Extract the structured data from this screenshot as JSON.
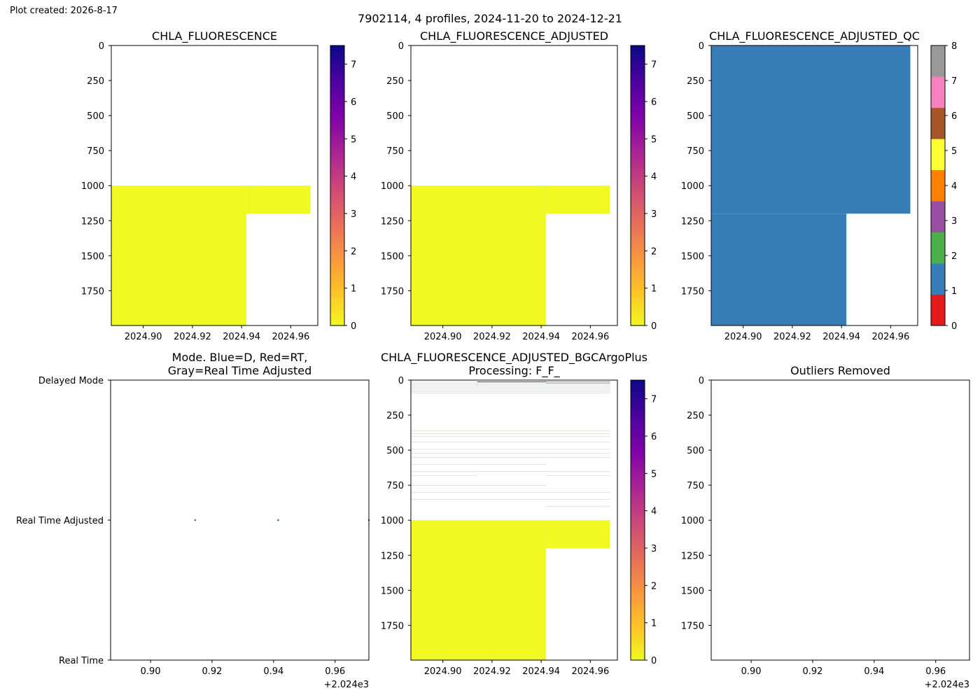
{
  "header": {
    "created": "Plot created: 2026-8-17",
    "suptitle": "7902114, 4 profiles, 2024-11-20 to 2024-12-21"
  },
  "colors": {
    "value_cmap": [
      "#f0f921",
      "#fdc328",
      "#f89441",
      "#e56b5d",
      "#cb4679",
      "#a82296",
      "#7e03a8",
      "#4c02a1",
      "#0d0887"
    ],
    "qc_cmap": [
      "#e41a1c",
      "#377eb8",
      "#4daf4a",
      "#984ea3",
      "#ff7f00",
      "#ffff33",
      "#a65628",
      "#f781bf",
      "#999999"
    ],
    "yellow": "#f0f921",
    "qc1_blue": "#377eb8",
    "profile_dot": "#1f77b4"
  },
  "chart_data": [
    {
      "type": "heatmap",
      "title": "CHLA_FLUORESCENCE",
      "xticks": [
        "2024.90",
        "2024.92",
        "2024.94",
        "2024.96"
      ],
      "xtick_values": [
        2024.9,
        2024.92,
        2024.94,
        2024.96
      ],
      "xlim": [
        2024.887,
        2024.971
      ],
      "yticks": [
        "0",
        "250",
        "500",
        "750",
        "1000",
        "1250",
        "1500",
        "1750"
      ],
      "ytick_values": [
        0,
        250,
        500,
        750,
        1000,
        1250,
        1500,
        1750
      ],
      "ylim": [
        1998,
        0
      ],
      "cells": [
        {
          "x0": 2024.887,
          "x1": 2024.942,
          "y0": 1000,
          "y1": 1998,
          "value": 0
        },
        {
          "x0": 2024.942,
          "x1": 2024.968,
          "y0": 1000,
          "y1": 1200,
          "value": 0
        }
      ],
      "colorbar": {
        "ticks": [
          "0",
          "1",
          "2",
          "3",
          "4",
          "5",
          "6",
          "7"
        ],
        "range": [
          0,
          7.5
        ]
      }
    },
    {
      "type": "heatmap",
      "title": "CHLA_FLUORESCENCE_ADJUSTED",
      "xticks": [
        "2024.90",
        "2024.92",
        "2024.94",
        "2024.96"
      ],
      "xtick_values": [
        2024.9,
        2024.92,
        2024.94,
        2024.96
      ],
      "xlim": [
        2024.887,
        2024.971
      ],
      "yticks": [
        "0",
        "250",
        "500",
        "750",
        "1000",
        "1250",
        "1500",
        "1750"
      ],
      "ytick_values": [
        0,
        250,
        500,
        750,
        1000,
        1250,
        1500,
        1750
      ],
      "ylim": [
        1998,
        0
      ],
      "cells": [
        {
          "x0": 2024.887,
          "x1": 2024.942,
          "y0": 1000,
          "y1": 1998,
          "value": 0
        },
        {
          "x0": 2024.942,
          "x1": 2024.968,
          "y0": 1000,
          "y1": 1200,
          "value": 0
        }
      ],
      "colorbar": {
        "ticks": [
          "0",
          "1",
          "2",
          "3",
          "4",
          "5",
          "6",
          "7"
        ],
        "range": [
          0,
          7.5
        ]
      }
    },
    {
      "type": "heatmap",
      "title": "CHLA_FLUORESCENCE_ADJUSTED_QC",
      "xticks": [
        "2024.90",
        "2024.92",
        "2024.94",
        "2024.96"
      ],
      "xtick_values": [
        2024.9,
        2024.92,
        2024.94,
        2024.96
      ],
      "xlim": [
        2024.887,
        2024.971
      ],
      "yticks": [
        "0",
        "250",
        "500",
        "750",
        "1000",
        "1250",
        "1500",
        "1750"
      ],
      "ytick_values": [
        0,
        250,
        500,
        750,
        1000,
        1250,
        1500,
        1750
      ],
      "ylim": [
        1998,
        0
      ],
      "cells": [
        {
          "x0": 2024.887,
          "x1": 2024.968,
          "y0": 0,
          "y1": 1200,
          "value": 1
        },
        {
          "x0": 2024.887,
          "x1": 2024.942,
          "y0": 1200,
          "y1": 1998,
          "value": 1
        }
      ],
      "colorbar": {
        "ticks": [
          "0",
          "1",
          "2",
          "3",
          "4",
          "5",
          "6",
          "7",
          "8"
        ],
        "range": [
          0,
          8
        ],
        "discrete": true
      }
    },
    {
      "type": "scatter",
      "title": "Mode. Blue=D, Red=RT,",
      "subtitle": "Gray=Real Time Adjusted",
      "xticks": [
        "0.90",
        "0.92",
        "0.94",
        "0.96"
      ],
      "xtick_values": [
        2024.9,
        2024.92,
        2024.94,
        2024.96
      ],
      "xoffset_label": "+2.024e3",
      "xlim": [
        2024.887,
        2024.971
      ],
      "ytick_labels": [
        "Delayed Mode",
        "Real Time Adjusted",
        "Real Time"
      ],
      "ytick_values": [
        2,
        1,
        0
      ],
      "ylim": [
        0,
        2
      ],
      "x": [
        2024.9145,
        2024.9415,
        2024.971
      ],
      "y": [
        1,
        1,
        1
      ]
    },
    {
      "type": "heatmap",
      "title": "CHLA_FLUORESCENCE_ADJUSTED_BGCArgoPlus",
      "subtitle": "Processing: F_F_",
      "xticks": [
        "2024.90",
        "2024.92",
        "2024.94",
        "2024.96"
      ],
      "xtick_values": [
        2024.9,
        2024.92,
        2024.94,
        2024.96
      ],
      "xlim": [
        2024.887,
        2024.971
      ],
      "yticks": [
        "0",
        "250",
        "500",
        "750",
        "1000",
        "1250",
        "1500",
        "1750"
      ],
      "ytick_values": [
        0,
        250,
        500,
        750,
        1000,
        1250,
        1500,
        1750
      ],
      "ylim": [
        1998,
        0
      ],
      "cells": [
        {
          "x0": 2024.887,
          "x1": 2024.968,
          "y0": 10,
          "y1": 14,
          "value": 0
        },
        {
          "x0": 2024.887,
          "x1": 2024.968,
          "y0": 20,
          "y1": 24,
          "value": 0
        },
        {
          "x0": 2024.887,
          "x1": 2024.968,
          "y0": 30,
          "y1": 34,
          "value": 0
        },
        {
          "x0": 2024.887,
          "x1": 2024.968,
          "y0": 40,
          "y1": 44,
          "value": 0
        },
        {
          "x0": 2024.887,
          "x1": 2024.968,
          "y0": 50,
          "y1": 54,
          "value": 0
        },
        {
          "x0": 2024.887,
          "x1": 2024.968,
          "y0": 60,
          "y1": 64,
          "value": 0
        },
        {
          "x0": 2024.887,
          "x1": 2024.968,
          "y0": 70,
          "y1": 74,
          "value": 0
        },
        {
          "x0": 2024.887,
          "x1": 2024.968,
          "y0": 80,
          "y1": 84,
          "value": 0
        },
        {
          "x0": 2024.887,
          "x1": 2024.968,
          "y0": 90,
          "y1": 94,
          "value": 0
        },
        {
          "x0": 2024.914,
          "x1": 2024.942,
          "y0": 10,
          "y1": 14,
          "value": 7.2
        },
        {
          "x0": 2024.942,
          "x1": 2024.968,
          "y0": 10,
          "y1": 14,
          "value": 3.5
        },
        {
          "x0": 2024.942,
          "x1": 2024.968,
          "y0": 20,
          "y1": 24,
          "value": 2.5
        },
        {
          "x0": 2024.887,
          "x1": 2024.968,
          "y0": 360,
          "y1": 364,
          "value": 0
        },
        {
          "x0": 2024.887,
          "x1": 2024.968,
          "y0": 380,
          "y1": 384,
          "value": 0
        },
        {
          "x0": 2024.887,
          "x1": 2024.968,
          "y0": 400,
          "y1": 404,
          "value": 0
        },
        {
          "x0": 2024.887,
          "x1": 2024.968,
          "y0": 440,
          "y1": 444,
          "value": 0
        },
        {
          "x0": 2024.887,
          "x1": 2024.968,
          "y0": 490,
          "y1": 494,
          "value": 0
        },
        {
          "x0": 2024.887,
          "x1": 2024.968,
          "y0": 520,
          "y1": 524,
          "value": 0
        },
        {
          "x0": 2024.887,
          "x1": 2024.968,
          "y0": 550,
          "y1": 554,
          "value": 0
        },
        {
          "x0": 2024.887,
          "x1": 2024.942,
          "y0": 600,
          "y1": 604,
          "value": 0
        },
        {
          "x0": 2024.887,
          "x1": 2024.968,
          "y0": 650,
          "y1": 654,
          "value": 0
        },
        {
          "x0": 2024.887,
          "x1": 2024.914,
          "y0": 680,
          "y1": 684,
          "value": 0
        },
        {
          "x0": 2024.942,
          "x1": 2024.968,
          "y0": 680,
          "y1": 684,
          "value": 0
        },
        {
          "x0": 2024.887,
          "x1": 2024.942,
          "y0": 750,
          "y1": 754,
          "value": 0
        },
        {
          "x0": 2024.887,
          "x1": 2024.968,
          "y0": 800,
          "y1": 804,
          "value": 0
        },
        {
          "x0": 2024.887,
          "x1": 2024.968,
          "y0": 850,
          "y1": 854,
          "value": 0
        },
        {
          "x0": 2024.942,
          "x1": 2024.968,
          "y0": 900,
          "y1": 904,
          "value": 0
        },
        {
          "x0": 2024.887,
          "x1": 2024.942,
          "y0": 1000,
          "y1": 1998,
          "value": 0
        },
        {
          "x0": 2024.942,
          "x1": 2024.968,
          "y0": 1000,
          "y1": 1200,
          "value": 0
        }
      ],
      "colorbar": {
        "ticks": [
          "0",
          "1",
          "2",
          "3",
          "4",
          "5",
          "6",
          "7"
        ],
        "range": [
          0,
          7.5
        ]
      }
    },
    {
      "type": "heatmap",
      "title": "Outliers Removed",
      "xticks": [
        "0.90",
        "0.92",
        "0.94",
        "0.96"
      ],
      "xtick_values": [
        2024.9,
        2024.92,
        2024.94,
        2024.96
      ],
      "xoffset_label": "+2.024e3",
      "xlim": [
        2024.887,
        2024.971
      ],
      "yticks": [
        "0",
        "250",
        "500",
        "750",
        "1000",
        "1250",
        "1500",
        "1750"
      ],
      "ytick_values": [
        0,
        250,
        500,
        750,
        1000,
        1250,
        1500,
        1750
      ],
      "ylim": [
        1998,
        0
      ],
      "cells": []
    }
  ]
}
